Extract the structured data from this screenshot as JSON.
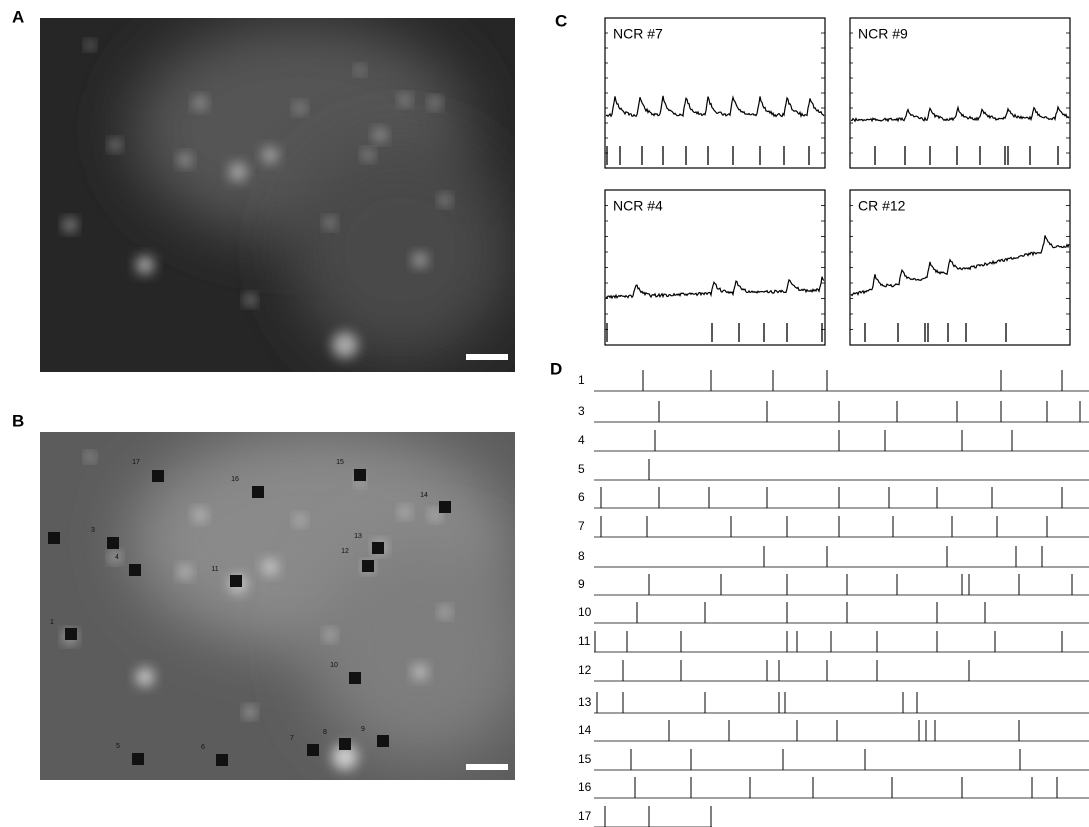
{
  "panel_a": {
    "label": "A"
  },
  "panel_b": {
    "label": "B",
    "markers": [
      "17",
      "16",
      "15",
      "14",
      "3",
      "4",
      "13",
      "12",
      "11",
      "1",
      "10",
      "5",
      "6",
      "7",
      "8",
      "9"
    ]
  },
  "panel_c": {
    "label": "C",
    "plots": [
      "NCR #7",
      "NCR #9",
      "NCR #4",
      "CR #12"
    ]
  },
  "panel_d": {
    "label": "D",
    "rows": [
      "1",
      "3",
      "4",
      "5",
      "6",
      "7",
      "8",
      "9",
      "10",
      "11",
      "12",
      "13",
      "14",
      "15",
      "16",
      "17"
    ]
  }
}
